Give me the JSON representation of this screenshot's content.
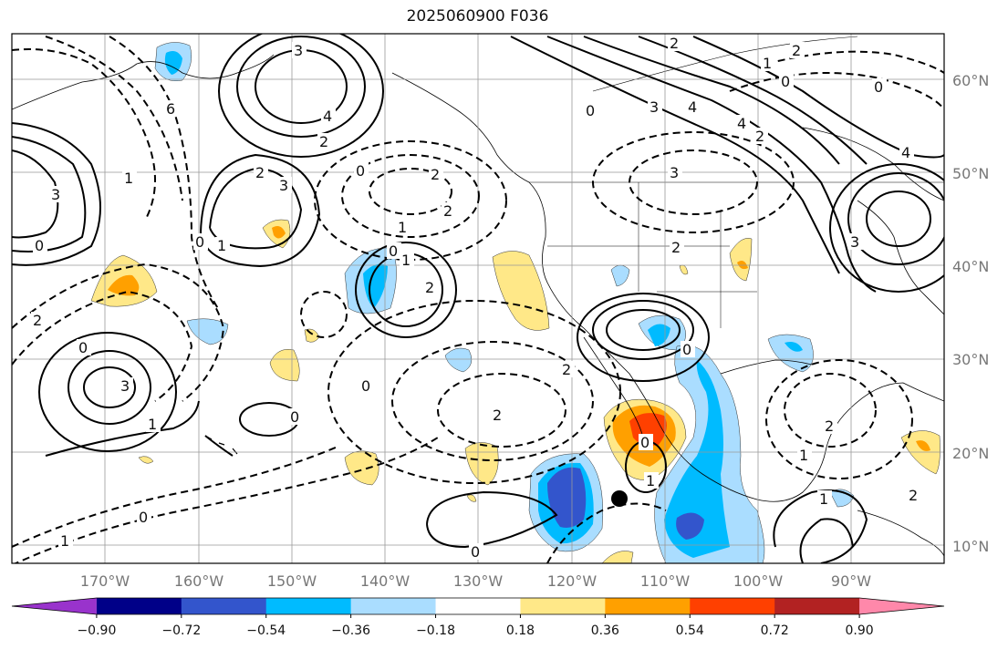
{
  "title": "2025060900 F036",
  "lat_ticks": [
    {
      "label": "60°N",
      "deg": 60
    },
    {
      "label": "50°N",
      "deg": 50
    },
    {
      "label": "40°N",
      "deg": 40
    },
    {
      "label": "30°N",
      "deg": 30
    },
    {
      "label": "20°N",
      "deg": 20
    },
    {
      "label": "10°N",
      "deg": 10
    }
  ],
  "lon_ticks": [
    {
      "label": "170°W",
      "deg": -170
    },
    {
      "label": "160°W",
      "deg": -160
    },
    {
      "label": "150°W",
      "deg": -150
    },
    {
      "label": "140°W",
      "deg": -140
    },
    {
      "label": "130°W",
      "deg": -130
    },
    {
      "label": "120°W",
      "deg": -120
    },
    {
      "label": "110°W",
      "deg": -110
    },
    {
      "label": "100°W",
      "deg": -100
    },
    {
      "label": "90°W",
      "deg": -90
    }
  ],
  "colorbar": {
    "colors": [
      "#9933cc",
      "#000088",
      "#3355cc",
      "#00bbff",
      "#aaddff",
      "#ffffff",
      "#ffe888",
      "#ffa000",
      "#ff4000",
      "#b22222",
      "#ff88aa"
    ],
    "tick_labels": [
      "−0.90",
      "−0.72",
      "−0.54",
      "−0.36",
      "−0.18",
      "0.18",
      "0.36",
      "0.54",
      "0.72",
      "0.90"
    ]
  },
  "contour_labels": [
    "3",
    "4",
    "2",
    "0",
    "6",
    "3",
    "1",
    "2",
    "0",
    "3",
    "1",
    "0",
    "2",
    "2",
    "1",
    "0",
    "1",
    "2",
    "0",
    "3",
    "1",
    "0",
    "0",
    "2",
    "0",
    "1",
    "2",
    "2",
    "3",
    "4",
    "4",
    "2",
    "3",
    "0",
    "0",
    "1",
    "2",
    "4",
    "3",
    "0",
    "2",
    "2",
    "0",
    "0",
    "2",
    "1",
    "2",
    "1",
    "0",
    "1"
  ],
  "marker": {
    "lon": -114.8,
    "lat": 15.0
  }
}
